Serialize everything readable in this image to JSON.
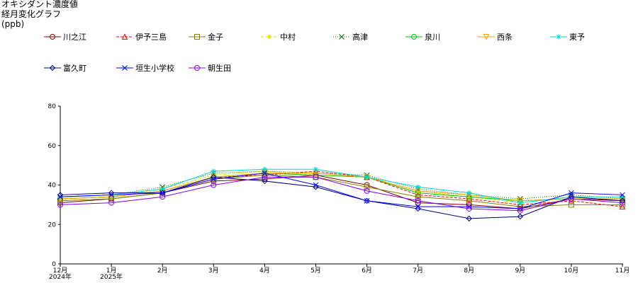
{
  "chart_data": {
    "type": "line",
    "title_lines": [
      "オキシダント濃度値",
      "経月変化グラフ",
      "(ppb)"
    ],
    "categories": [
      "12月",
      "1月",
      "2月",
      "3月",
      "4月",
      "5月",
      "6月",
      "7月",
      "8月",
      "9月",
      "10月",
      "11月"
    ],
    "category_sublabels": [
      "2024年",
      "2025年",
      "",
      "",
      "",
      "",
      "",
      "",
      "",
      "",
      "",
      ""
    ],
    "ylim": [
      0,
      80
    ],
    "yticks": [
      "0",
      "20",
      "40",
      "60",
      "80"
    ],
    "grid": false,
    "legend_position": "top",
    "series": [
      {
        "name": "川之江",
        "color": "#800000",
        "marker": "circle",
        "dash": "",
        "values": [
          31,
          33,
          36,
          42,
          43,
          45,
          40,
          31,
          30,
          28,
          33,
          32
        ]
      },
      {
        "name": "伊予三島",
        "color": "#ff0000",
        "marker": "triangle",
        "dash": "4,2",
        "values": [
          33,
          34,
          37,
          44,
          45,
          47,
          44,
          35,
          33,
          30,
          32,
          29
        ]
      },
      {
        "name": "金子",
        "color": "#808000",
        "marker": "square",
        "dash": "",
        "values": [
          32,
          33,
          36,
          43,
          45,
          44,
          39,
          34,
          32,
          29,
          30,
          30
        ]
      },
      {
        "name": "中村",
        "color": "#e0e000",
        "marker": "star",
        "dash": "4,2",
        "values": [
          33,
          34,
          38,
          45,
          47,
          45,
          44,
          37,
          34,
          31,
          34,
          32
        ]
      },
      {
        "name": "高津",
        "color": "#006000",
        "marker": "cross",
        "dash": "1,2",
        "values": [
          34,
          35,
          39,
          46,
          47,
          46,
          45,
          38,
          35,
          33,
          35,
          33
        ]
      },
      {
        "name": "泉川",
        "color": "#00c000",
        "marker": "circle",
        "dash": "",
        "values": [
          33,
          34,
          37,
          44,
          46,
          45,
          44,
          36,
          34,
          32,
          33,
          33
        ]
      },
      {
        "name": "西条",
        "color": "#ffa000",
        "marker": "triangle-down",
        "dash": "",
        "values": [
          33,
          34,
          37,
          44,
          46,
          46,
          44,
          37,
          35,
          32,
          33,
          33
        ]
      },
      {
        "name": "東予",
        "color": "#00d8d8",
        "marker": "star",
        "dash": "",
        "values": [
          34,
          35,
          38,
          47,
          48,
          48,
          44,
          39,
          36,
          31,
          34,
          34
        ]
      },
      {
        "name": "富久町",
        "color": "#000080",
        "marker": "diamond",
        "dash": "",
        "values": [
          35,
          36,
          36,
          44,
          42,
          39,
          32,
          28,
          23,
          24,
          34,
          32
        ]
      },
      {
        "name": "垣生小学校",
        "color": "#0000ff",
        "marker": "cross",
        "dash": "",
        "values": [
          34,
          35,
          36,
          43,
          46,
          40,
          32,
          29,
          29,
          28,
          36,
          35
        ]
      },
      {
        "name": "朝生田",
        "color": "#8000ff",
        "marker": "circle",
        "dash": "",
        "values": [
          30,
          31,
          34,
          40,
          44,
          44,
          37,
          32,
          28,
          27,
          33,
          31
        ]
      }
    ]
  }
}
